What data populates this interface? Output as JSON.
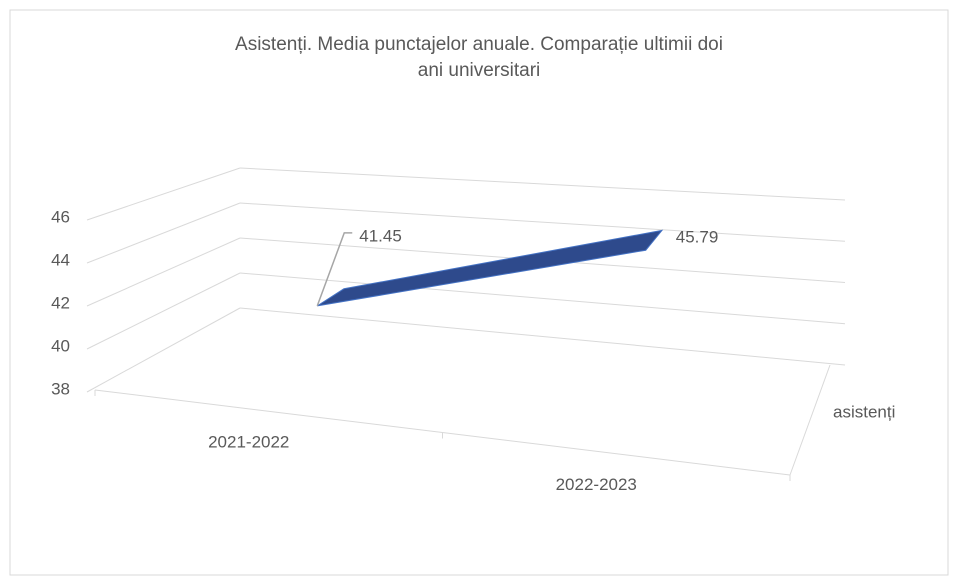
{
  "chart_data": {
    "type": "line3d",
    "title": "Asistenți. Media punctajelor anuale. Comparație ultimii doi ani universitari",
    "categories": [
      "2021-2022",
      "2022-2023"
    ],
    "series": [
      {
        "name": "asistenți",
        "color": "#2e4a8c",
        "values": [
          41.45,
          45.79
        ]
      }
    ],
    "ylim": [
      38,
      46
    ],
    "yticks": [
      38,
      40,
      42,
      44,
      46
    ],
    "grid": true
  }
}
